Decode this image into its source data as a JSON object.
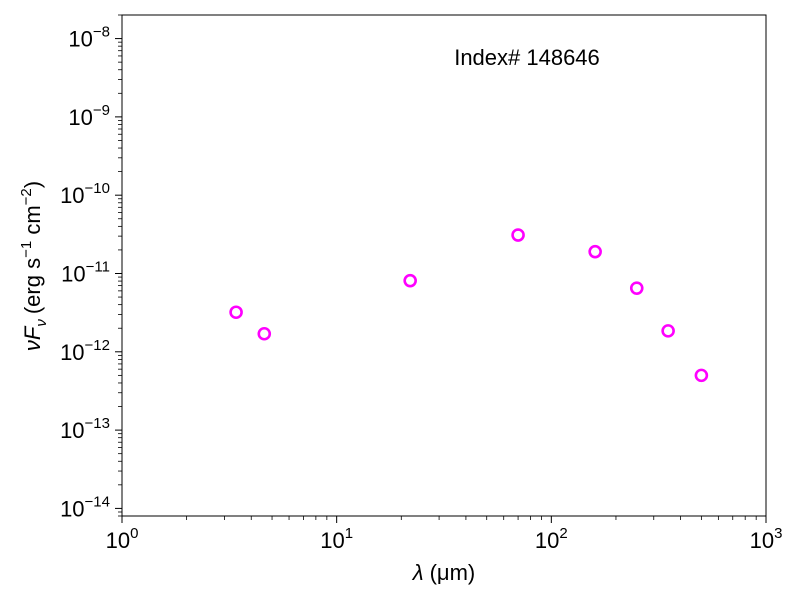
{
  "chart_data": {
    "type": "scatter",
    "title": "",
    "annotation": "Index# 148646",
    "xlabel": {
      "symbol": "λ",
      "unit": "(μm)"
    },
    "ylabel": {
      "symbol": "νF",
      "subscript": "ν",
      "unit_prefix": "(erg s",
      "exp1": "−1",
      "unit_middle": " cm",
      "exp2": "−2",
      "unit_suffix": ")"
    },
    "xscale": "log",
    "yscale": "log",
    "xlim": [
      1,
      1000
    ],
    "ylim": [
      8e-15,
      2e-08
    ],
    "x_ticks": [
      {
        "value": 1,
        "base": "10",
        "exp": "0"
      },
      {
        "value": 10,
        "base": "10",
        "exp": "1"
      },
      {
        "value": 100,
        "base": "10",
        "exp": "2"
      },
      {
        "value": 1000,
        "base": "10",
        "exp": "3"
      }
    ],
    "y_ticks": [
      {
        "value": 1e-14,
        "base": "10",
        "exp": "−14"
      },
      {
        "value": 1e-13,
        "base": "10",
        "exp": "−13"
      },
      {
        "value": 1e-12,
        "base": "10",
        "exp": "−12"
      },
      {
        "value": 1e-11,
        "base": "10",
        "exp": "−11"
      },
      {
        "value": 1e-10,
        "base": "10",
        "exp": "−10"
      },
      {
        "value": 1e-09,
        "base": "10",
        "exp": "−9"
      },
      {
        "value": 1e-08,
        "base": "10",
        "exp": "−8"
      }
    ],
    "marker": {
      "shape": "open-circle",
      "color": "#ff00ff"
    },
    "grid": false,
    "points": [
      {
        "x": 3.4,
        "y": 3.2e-12
      },
      {
        "x": 4.6,
        "y": 1.7e-12
      },
      {
        "x": 22,
        "y": 8.1e-12
      },
      {
        "x": 70,
        "y": 3.1e-11
      },
      {
        "x": 160,
        "y": 1.9e-11
      },
      {
        "x": 250,
        "y": 6.5e-12
      },
      {
        "x": 350,
        "y": 1.85e-12
      },
      {
        "x": 500,
        "y": 5e-13
      }
    ]
  }
}
